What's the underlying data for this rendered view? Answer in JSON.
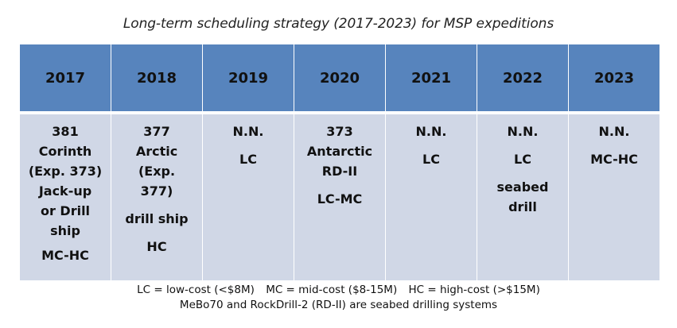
{
  "title": "Long-term scheduling strategy (2017-2023) for MSP expeditions",
  "columns": [
    {
      "year": "2017",
      "lines": [
        "381",
        "Corinth",
        "(Exp. 373)",
        "Jack-up",
        "or Drill",
        "ship",
        "MC-HC"
      ]
    },
    {
      "year": "2018",
      "lines": [
        "377",
        "Arctic",
        "(Exp.",
        "377)",
        "drill ship",
        "HC"
      ]
    },
    {
      "year": "2019",
      "lines": [
        "N.N.",
        "LC"
      ]
    },
    {
      "year": "2020",
      "lines": [
        "373",
        "Antarctic",
        "RD-II",
        "LC-MC"
      ]
    },
    {
      "year": "2021",
      "lines": [
        "N.N.",
        "LC"
      ]
    },
    {
      "year": "2022",
      "lines": [
        "N.N.",
        "LC",
        "seabed",
        "drill"
      ]
    },
    {
      "year": "2023",
      "lines": [
        "N.N.",
        "MC-HC"
      ]
    }
  ],
  "legend": {
    "lc": "LC = low-cost (<$8M)",
    "mc": "MC = mid-cost ($8-15M)",
    "hc": "HC = high-cost (>$15M)",
    "note": "MeBo70 and RockDrill-2 (RD-II) are seabed drilling systems"
  }
}
